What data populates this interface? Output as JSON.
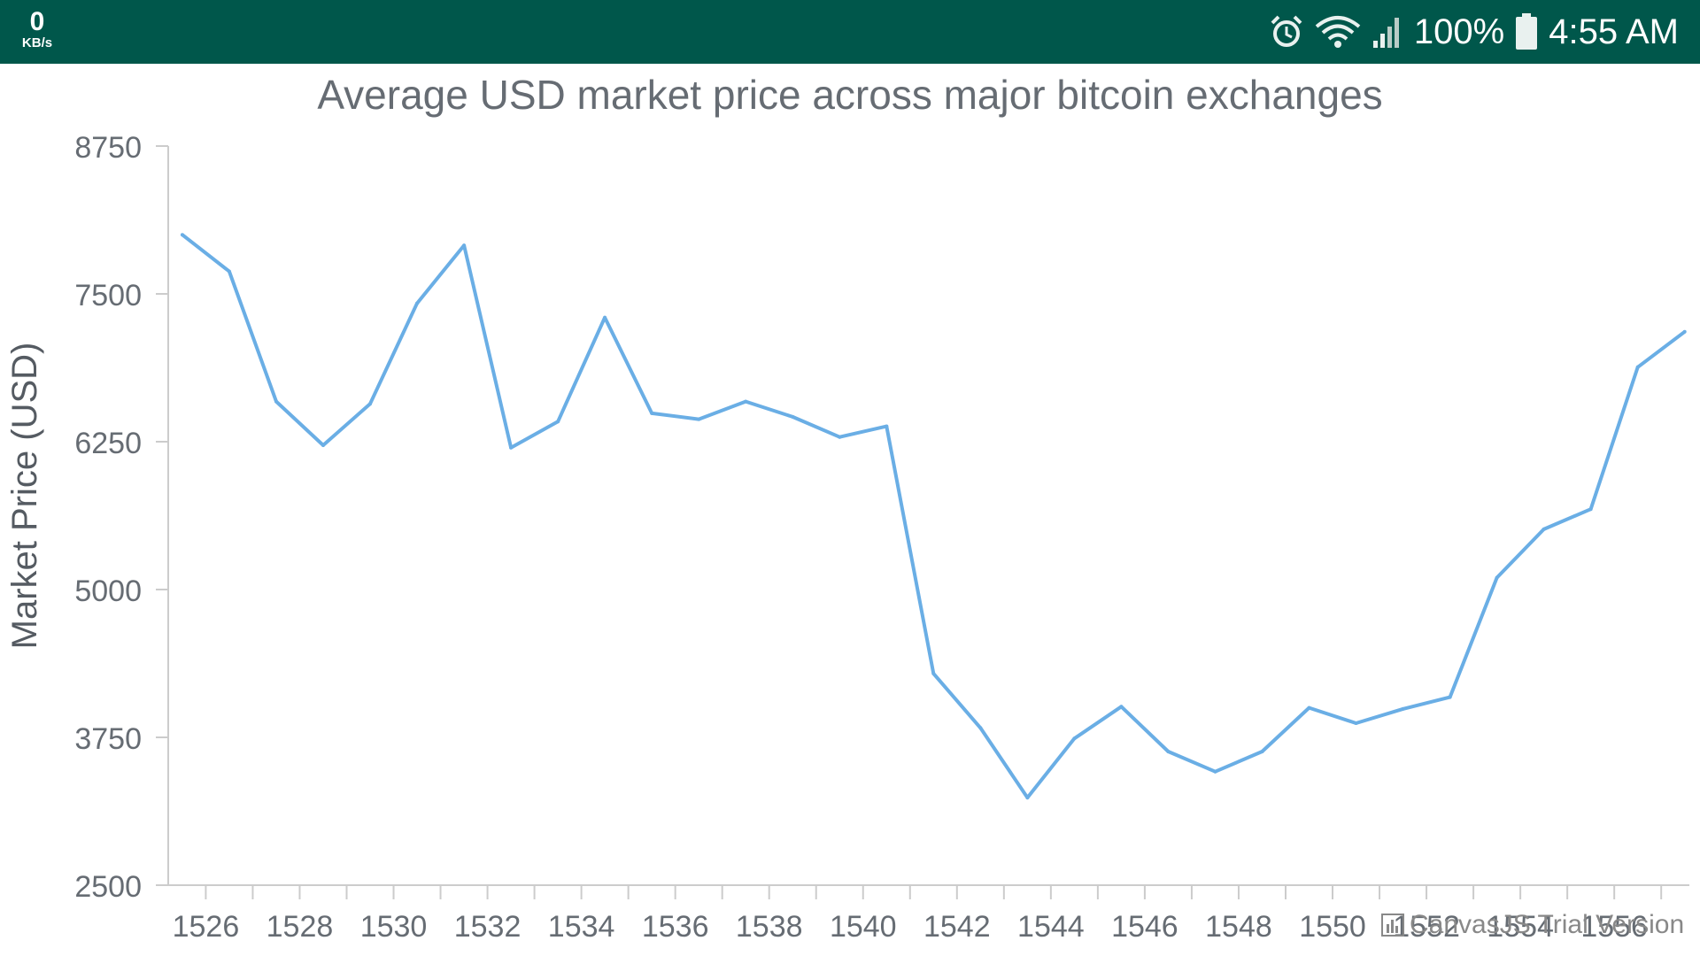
{
  "status_bar": {
    "net_speed_value": "0",
    "net_speed_unit": "KB/s",
    "battery_level": "100%",
    "time": "4:55 AM",
    "background": "#00574b",
    "icons": [
      "alarm-icon",
      "wifi-icon",
      "cell-signal-icon",
      "battery-icon"
    ]
  },
  "watermark": {
    "text": "CanvasJS Trial Version",
    "icon": "chart-icon"
  },
  "chart_data": {
    "type": "line",
    "title": "Average USD market price across major bitcoin exchanges",
    "xlabel": "",
    "ylabel": "Market Price (USD)",
    "x_ticks": [
      1526,
      1528,
      1530,
      1532,
      1534,
      1536,
      1538,
      1540,
      1542,
      1544,
      1546,
      1548,
      1550,
      1552,
      1554,
      1556
    ],
    "y_ticks": [
      2500,
      3750,
      5000,
      6250,
      7500,
      8750
    ],
    "xlim": [
      1525.2,
      1557.6
    ],
    "ylim": [
      2500,
      8750
    ],
    "grid": false,
    "legend": "none",
    "line_color": "#6aaee5",
    "series": [
      {
        "x": [
          1525.5,
          1526.5,
          1527.5,
          1528.5,
          1529.5,
          1530.5,
          1531.5,
          1532.5,
          1533.5,
          1534.5,
          1535.5,
          1536.5,
          1537.5,
          1538.5,
          1539.5,
          1540.5,
          1541.5,
          1542.5,
          1543.5,
          1544.5,
          1545.5,
          1546.5,
          1547.5,
          1548.5,
          1549.5,
          1550.5,
          1551.5,
          1552.5,
          1553.5,
          1554.5,
          1555.5,
          1556.5,
          1557.5
        ],
        "values": [
          8000,
          7690,
          6590,
          6220,
          6570,
          7420,
          7910,
          6200,
          6420,
          7300,
          6490,
          6440,
          6590,
          6460,
          6290,
          6380,
          4290,
          3830,
          3240,
          3740,
          4010,
          3630,
          3460,
          3630,
          4000,
          3870,
          3990,
          4090,
          5100,
          5510,
          5680,
          6880,
          7180
        ]
      }
    ]
  }
}
